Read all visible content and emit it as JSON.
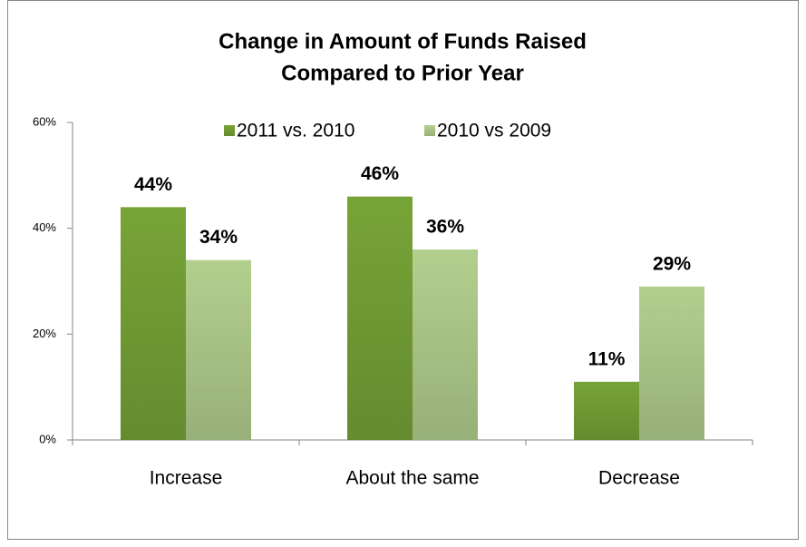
{
  "chart_data": {
    "type": "bar",
    "title": [
      "Change in Amount of Funds Raised",
      "Compared to Prior Year"
    ],
    "categories": [
      "Increase",
      "About the same",
      "Decrease"
    ],
    "series": [
      {
        "name": "2011 vs. 2010",
        "color": "#77a437",
        "values": [
          44,
          46,
          11
        ],
        "value_labels": [
          "44%",
          "46%",
          "11%"
        ]
      },
      {
        "name": "2010 vs 2009",
        "color": "#b3cf8e",
        "values": [
          34,
          36,
          29
        ],
        "value_labels": [
          "34%",
          "36%",
          "29%"
        ]
      }
    ],
    "ylim": [
      0,
      60
    ],
    "yticks": [
      {
        "value": 0,
        "label": "0%"
      },
      {
        "value": 20,
        "label": "20%"
      },
      {
        "value": 40,
        "label": "40%"
      },
      {
        "value": 60,
        "label": "60%"
      }
    ],
    "legend": "top"
  }
}
